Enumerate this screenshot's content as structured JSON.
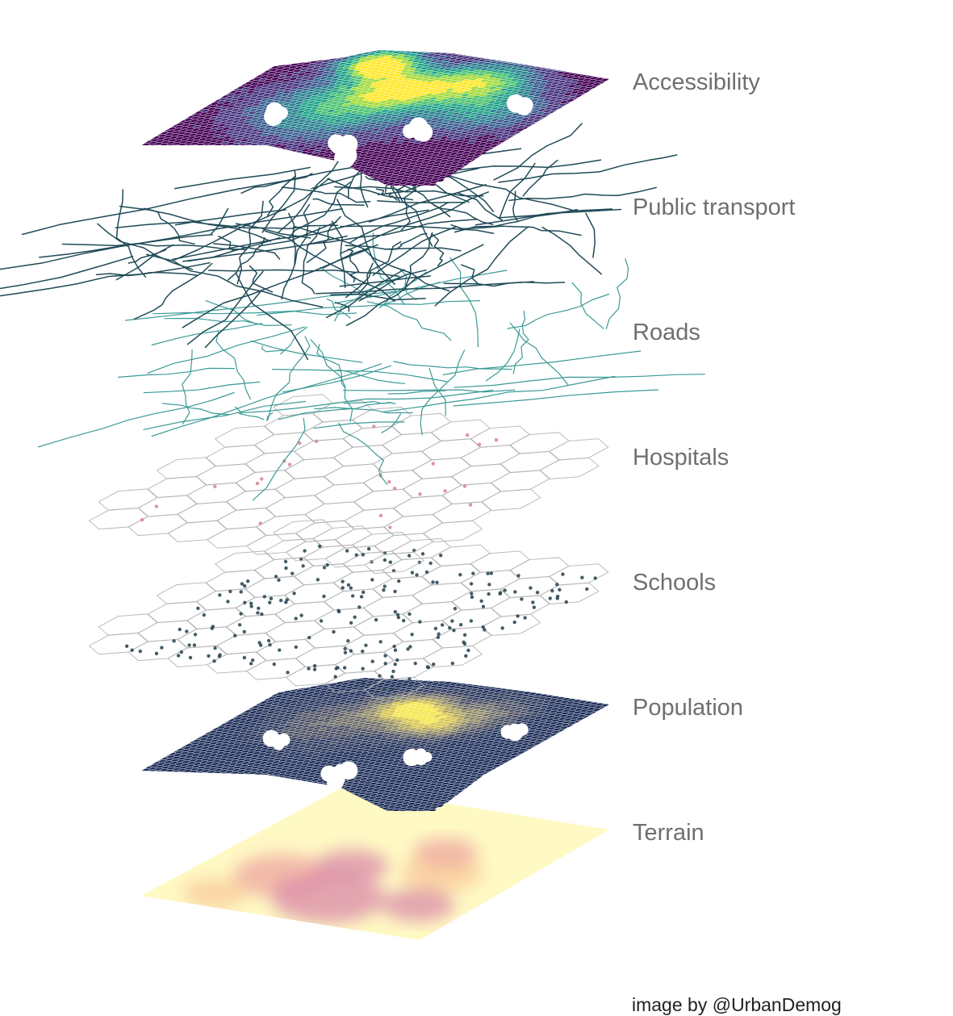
{
  "layers": [
    {
      "id": "accessibility",
      "label": "Accessibility",
      "style": "hex-viridis"
    },
    {
      "id": "public-transport",
      "label": "Public transport",
      "style": "lines",
      "color": "#1f4a57"
    },
    {
      "id": "roads",
      "label": "Roads",
      "style": "lines",
      "color": "#3a9a96"
    },
    {
      "id": "hospitals",
      "label": "Hospitals",
      "style": "hex-grid-points",
      "color": "#d9828a"
    },
    {
      "id": "schools",
      "label": "Schools",
      "style": "hex-grid-points",
      "color": "#2f4a55"
    },
    {
      "id": "population",
      "label": "Population",
      "style": "hex-cividis"
    },
    {
      "id": "terrain",
      "label": "Terrain",
      "style": "raster-magma"
    }
  ],
  "credit": "image by @UrbanDemog",
  "palettes": {
    "viridis": [
      "#440154",
      "#46337e",
      "#365c8d",
      "#277f8e",
      "#1fa187",
      "#4ac16d",
      "#a0da39",
      "#fde725"
    ],
    "cividis": [
      "#1f2f5a",
      "#2c3a5e",
      "#4a4e62",
      "#6b6a66",
      "#8c8764",
      "#b1a55c",
      "#d7c54e",
      "#f5e64a"
    ],
    "terrain": [
      "#fff8c0",
      "#fde9a8",
      "#f8c89a",
      "#eea5a0",
      "#d98aa8"
    ]
  }
}
